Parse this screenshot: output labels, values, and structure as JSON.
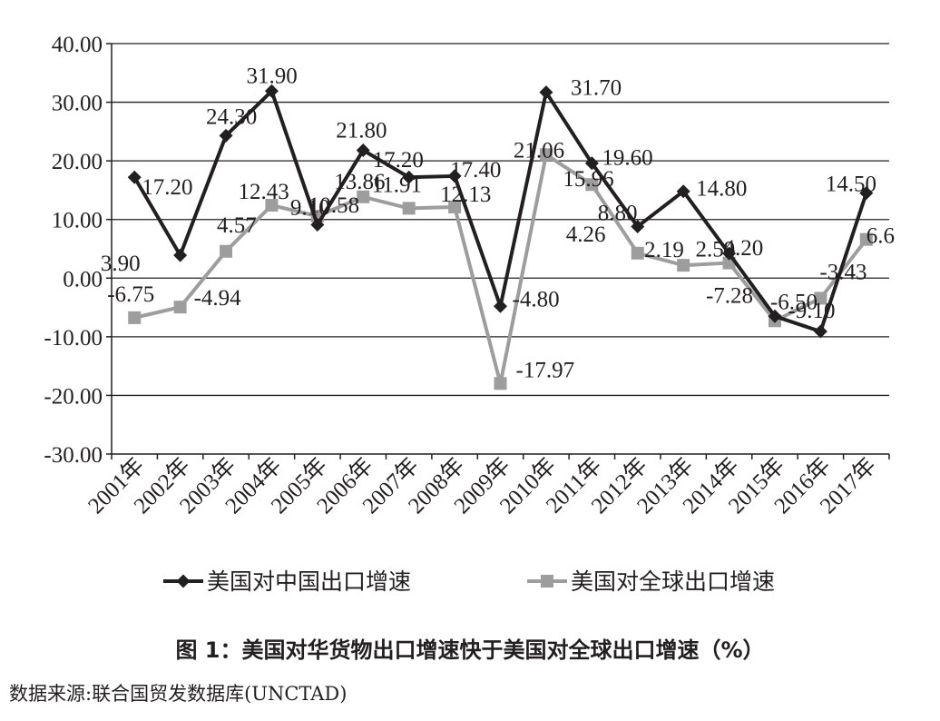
{
  "chart_data": {
    "type": "line",
    "categories": [
      "2001年",
      "2002年",
      "2003年",
      "2004年",
      "2005年",
      "2006年",
      "2007年",
      "2008年",
      "2009年",
      "2010年",
      "2011年",
      "2012年",
      "2013年",
      "2014年",
      "2015年",
      "2016年",
      "2017年"
    ],
    "series": [
      {
        "name": "美国对中国出口增速",
        "color": "#231f20",
        "marker": "diamond",
        "values": [
          17.2,
          3.9,
          24.3,
          31.9,
          9.1,
          21.8,
          17.2,
          17.4,
          -4.8,
          31.7,
          19.6,
          8.8,
          14.8,
          4.2,
          -6.5,
          -9.1,
          14.5
        ],
        "labels": [
          "17.20",
          "3.90",
          "24.30",
          "31.90",
          "9.10",
          "21.80",
          "17.20",
          "17.40",
          "-4.80",
          "31.70",
          "19.60",
          "8.80",
          "14.80",
          "4.20",
          "-6.50",
          "-9.10",
          "14.50"
        ]
      },
      {
        "name": "美国对全球出口增速",
        "color": "#9d9d9d",
        "marker": "square",
        "values": [
          -6.75,
          -4.94,
          4.57,
          12.43,
          10.58,
          13.86,
          11.91,
          12.13,
          -17.97,
          21.06,
          15.96,
          4.26,
          2.19,
          2.59,
          -7.28,
          -3.43,
          6.6
        ],
        "labels": [
          "-6.75",
          "-4.94",
          "4.57",
          "12.43",
          "10.58",
          "13.86",
          "11.91",
          "12.13",
          "-17.97",
          "21.06",
          "15.96",
          "4.26",
          "2.19",
          "2.59",
          "-7.28",
          "-3.43",
          "6.6"
        ]
      }
    ],
    "y_ticks": [
      "40.00",
      "30.00",
      "20.00",
      "10.00",
      "0.00",
      "-10.00",
      "-20.00",
      "-30.00"
    ],
    "ylim": [
      -30,
      40
    ],
    "grid": true,
    "legend_position": "bottom"
  },
  "caption": "图 1：美国对华货物出口增速快于美国对全球出口增速（%）",
  "source": "数据来源:联合国贸发数据库(UNCTAD)"
}
